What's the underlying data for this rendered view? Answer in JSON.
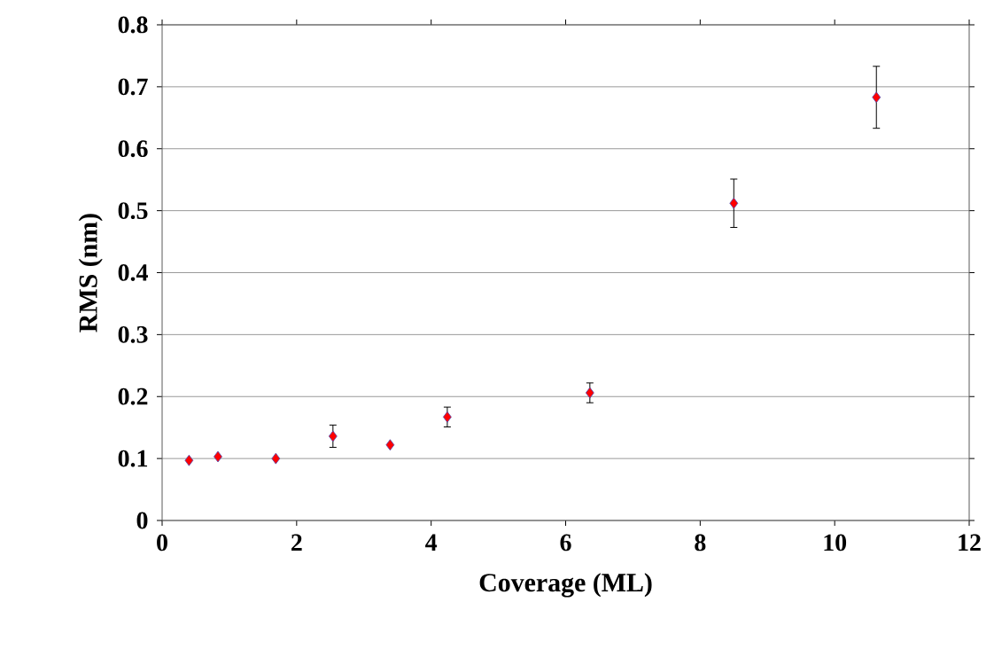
{
  "chart_data": {
    "type": "scatter",
    "xlabel": "Coverage (ML)",
    "ylabel": "RMS (nm)",
    "x": [
      0.4,
      0.83,
      1.69,
      2.54,
      3.39,
      4.24,
      6.36,
      8.5,
      10.62
    ],
    "values": [
      0.097,
      0.103,
      0.1,
      0.136,
      0.122,
      0.167,
      0.206,
      0.512,
      0.683
    ],
    "errors": [
      null,
      null,
      null,
      0.018,
      null,
      0.016,
      0.016,
      0.039,
      0.05
    ],
    "color": "#ff0000",
    "marker": "diamond",
    "xlim": [
      0,
      12
    ],
    "xticks": [
      0,
      2,
      4,
      6,
      8,
      10,
      12
    ],
    "ylim": [
      0,
      0.8
    ],
    "yticks": [
      0,
      0.1,
      0.2,
      0.3,
      0.4,
      0.5,
      0.6,
      0.7,
      0.8
    ],
    "grid": "y"
  }
}
